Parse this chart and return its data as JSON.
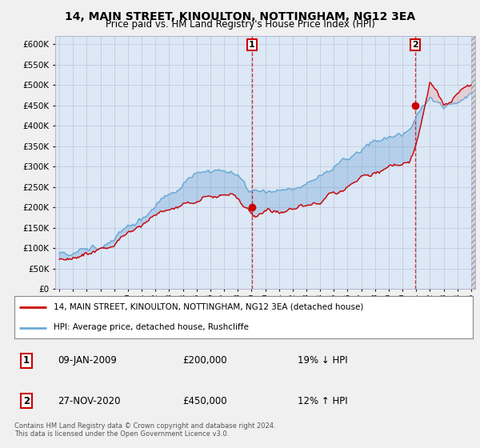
{
  "title": "14, MAIN STREET, KINOULTON, NOTTINGHAM, NG12 3EA",
  "subtitle": "Price paid vs. HM Land Registry's House Price Index (HPI)",
  "legend_line1": "14, MAIN STREET, KINOULTON, NOTTINGHAM, NG12 3EA (detached house)",
  "legend_line2": "HPI: Average price, detached house, Rushcliffe",
  "annotation1_date": "09-JAN-2009",
  "annotation1_price": "£200,000",
  "annotation1_hpi": "19% ↓ HPI",
  "annotation2_date": "27-NOV-2020",
  "annotation2_price": "£450,000",
  "annotation2_hpi": "12% ↑ HPI",
  "footer": "Contains HM Land Registry data © Crown copyright and database right 2024.\nThis data is licensed under the Open Government Licence v3.0.",
  "ylim": [
    0,
    620000
  ],
  "yticks": [
    0,
    50000,
    100000,
    150000,
    200000,
    250000,
    300000,
    350000,
    400000,
    450000,
    500000,
    550000,
    600000
  ],
  "bg_color": "#f0f0f0",
  "plot_bg_color": "#dce8f5",
  "hpi_color": "#6aaad4",
  "price_color": "#cc0000",
  "sale1_x": 2009.03,
  "sale1_y": 200000,
  "sale2_x": 2020.92,
  "sale2_y": 450000,
  "xlim_left": 1994.7,
  "xlim_right": 2025.3
}
